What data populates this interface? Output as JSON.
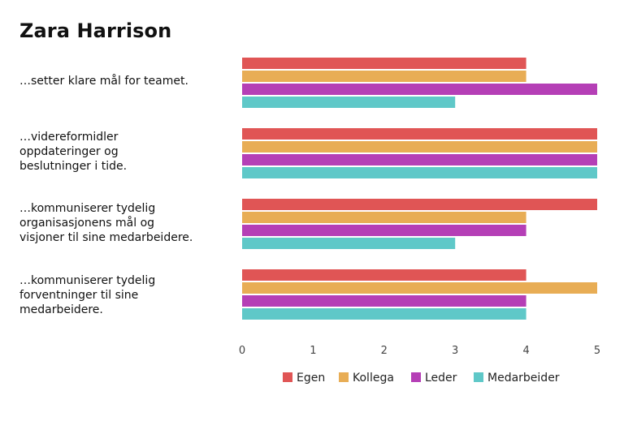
{
  "title": "Zara Harrison",
  "chart_data": {
    "type": "bar",
    "orientation": "horizontal",
    "title": "Zara Harrison",
    "categories": [
      "…setter klare mål for teamet.",
      "…videreformidler oppdateringer og beslutninger i tide.",
      "…kommuniserer tydelig organisasjonens mål og visjoner til sine medarbeidere.",
      "…kommuniserer tydelig forventninger til sine medarbeidere."
    ],
    "category_display": [
      "…setter klare mål for teamet.",
      "…videreformidler\noppdateringer og\nbeslutninger i tide.",
      "…kommuniserer tydelig\norganisasjonens mål og\nvisjoner til sine medarbeidere.",
      "…kommuniserer tydelig\nforventninger til sine\nmedarbeidere."
    ],
    "series": [
      {
        "name": "Egen",
        "color": "#e05555",
        "values": [
          4,
          5,
          5,
          4
        ]
      },
      {
        "name": "Kollega",
        "color": "#e8ad55",
        "values": [
          4,
          5,
          4,
          5
        ]
      },
      {
        "name": "Leder",
        "color": "#b53fb6",
        "values": [
          5,
          5,
          4,
          4
        ]
      },
      {
        "name": "Medarbeider",
        "color": "#5fc8c8",
        "values": [
          3,
          5,
          3,
          4
        ]
      }
    ],
    "xlim": [
      0,
      5
    ],
    "xticks": [
      "0",
      "1",
      "2",
      "3",
      "4",
      "5"
    ],
    "grid": false,
    "legend_position": "bottom"
  }
}
